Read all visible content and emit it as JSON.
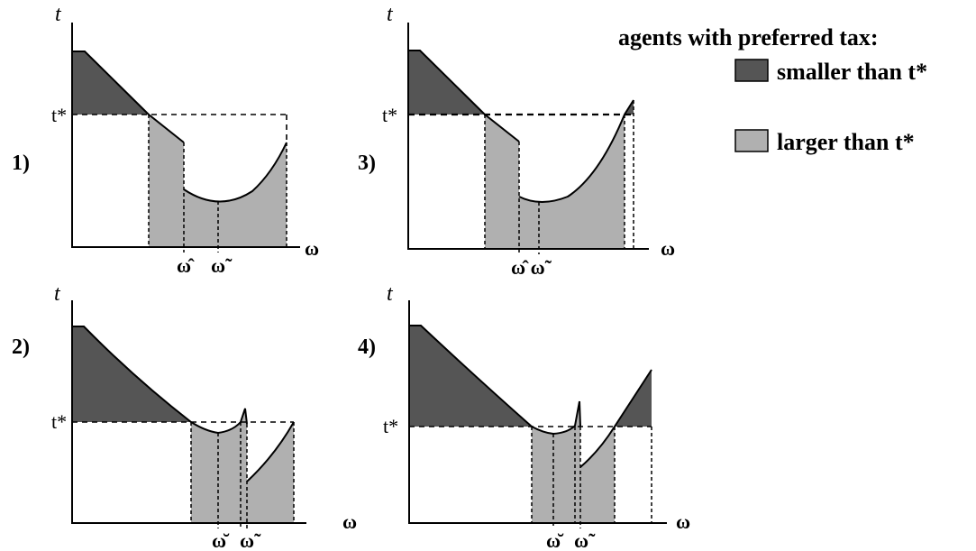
{
  "panels": [
    {
      "num": "1)",
      "t_label": "t",
      "tstar_label": "t*",
      "omega_label": "ω",
      "marks": [
        "ω̂",
        "ω̃"
      ]
    },
    {
      "num": "2)",
      "t_label": "t",
      "tstar_label": "t*",
      "omega_label": "ω",
      "marks": [
        "ω̆",
        "ω̃"
      ]
    },
    {
      "num": "3)",
      "t_label": "t",
      "tstar_label": "t*",
      "omega_label": "ω",
      "marks": [
        "ω̂ ω̃"
      ]
    },
    {
      "num": "4)",
      "t_label": "t",
      "tstar_label": "t*",
      "omega_label": "ω",
      "marks": [
        "ω̆",
        "ω̃"
      ]
    }
  ],
  "legend": {
    "title": "agents with preferred tax:",
    "items": [
      {
        "label": "smaller than t*",
        "color": "#555555"
      },
      {
        "label": "larger than t*",
        "color": "#b0b0b0"
      }
    ]
  }
}
